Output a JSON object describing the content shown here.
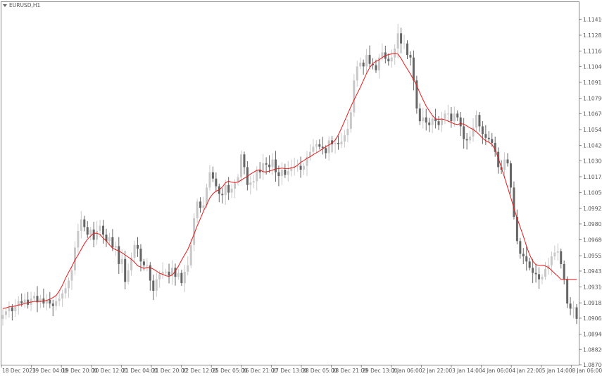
{
  "window": {
    "title": "EURUSD,H1",
    "menu_icon": "triangle-down-icon"
  },
  "chart_data": {
    "type": "candlestick",
    "symbol": "EURUSD",
    "timeframe": "H1",
    "ylim": [
      1.087,
      1.1155
    ],
    "y_ticks": [
      1.1141,
      1.11285,
      1.1116,
      1.1104,
      1.10915,
      1.1079,
      1.1067,
      1.10545,
      1.1042,
      1.103,
      1.10175,
      1.1005,
      1.09925,
      1.09805,
      1.0968,
      1.09555,
      1.09435,
      1.0931,
      1.09185,
      1.09065,
      1.0894,
      1.0882,
      1.087
    ],
    "y_tick_labels": [
      "1.11410",
      "1.11285",
      "1.11160",
      "1.11040",
      "1.10915",
      "1.10790",
      "1.10670",
      "1.10545",
      "1.10420",
      "1.10300",
      "1.10175",
      "1.10050",
      "1.09925",
      "1.09805",
      "1.09680",
      "1.09555",
      "1.09435",
      "1.09310",
      "1.09185",
      "1.09065",
      "1.08940",
      "1.08820",
      "1.08700"
    ],
    "x_tick_labels": [
      "18 Dec 2023",
      "19 Dec 04:00",
      "19 Dec 20:00",
      "20 Dec 12:00",
      "21 Dec 04:00",
      "21 Dec 20:00",
      "22 Dec 12:00",
      "25 Dec 05:00",
      "26 Dec 21:00",
      "27 Dec 13:00",
      "28 Dec 05:00",
      "28 Dec 21:00",
      "29 Dec 13:00",
      "2 Jan 06:00",
      "2 Jan 22:00",
      "3 Jan 14:00",
      "4 Jan 06:00",
      "4 Jan 22:00",
      "5 Jan 14:00",
      "8 Jan 06:00"
    ],
    "candles_visible": 180,
    "colors": {
      "bull": "#c8c8c8",
      "bear": "#666666",
      "moving_average": "#e8191a",
      "axis": "#888888",
      "text": "#555555"
    },
    "closes": [
      1.0909,
      1.0912,
      1.0915,
      1.0912,
      1.0916,
      1.092,
      1.0918,
      1.0921,
      1.0917,
      1.0922,
      1.0924,
      1.0919,
      1.0922,
      1.0918,
      1.0921,
      1.0918,
      1.0916,
      1.092,
      1.0922,
      1.0926,
      1.093,
      1.0936,
      1.0944,
      1.0962,
      1.0975,
      1.0984,
      1.0978,
      1.0972,
      1.0976,
      1.0968,
      1.0975,
      1.0979,
      1.0972,
      1.0967,
      1.097,
      1.0962,
      1.0963,
      1.0949,
      1.0953,
      1.0935,
      1.0944,
      1.0954,
      1.0964,
      1.0961,
      1.0951,
      1.0948,
      1.0948,
      1.0936,
      1.0928,
      1.0937,
      1.0941,
      1.0943,
      1.0943,
      1.094,
      1.0946,
      1.0939,
      1.0942,
      1.0934,
      1.0943,
      1.0948,
      1.0964,
      1.0985,
      1.0998,
      1.0993,
      1.0995,
      1.1009,
      1.1021,
      1.1016,
      1.101,
      1.1004,
      1.1003,
      1.1011,
      1.1005,
      1.1008,
      1.1013,
      1.1017,
      1.1035,
      1.1025,
      1.1011,
      1.1013,
      1.1014,
      1.1023,
      1.1021,
      1.1028,
      1.1027,
      1.1025,
      1.1031,
      1.1021,
      1.1018,
      1.1023,
      1.1019,
      1.1022,
      1.1025,
      1.1026,
      1.1026,
      1.1023,
      1.1026,
      1.1033,
      1.1037,
      1.1041,
      1.1043,
      1.1041,
      1.104,
      1.1036,
      1.1046,
      1.1043,
      1.1044,
      1.1043,
      1.1045,
      1.105,
      1.1055,
      1.1068,
      1.1093,
      1.1104,
      1.1107,
      1.1104,
      1.1113,
      1.1106,
      1.1105,
      1.1101,
      1.1111,
      1.1115,
      1.111,
      1.1108,
      1.1111,
      1.1118,
      1.113,
      1.1122,
      1.1122,
      1.1113,
      1.1111,
      1.1093,
      1.1071,
      1.1061,
      1.1064,
      1.106,
      1.1058,
      1.1063,
      1.1061,
      1.1058,
      1.1063,
      1.1067,
      1.1067,
      1.1061,
      1.1067,
      1.1064,
      1.1057,
      1.1047,
      1.1046,
      1.1049,
      1.1056,
      1.1066,
      1.1057,
      1.1051,
      1.1048,
      1.1047,
      1.1044,
      1.1037,
      1.1025,
      1.1023,
      1.1031,
      1.1028,
      1.1009,
      1.0986,
      1.0967,
      1.0957,
      1.0955,
      1.0951,
      1.0946,
      1.0942,
      1.0941,
      1.0937,
      1.0939,
      1.0945,
      1.0948,
      1.0955,
      1.0958,
      1.0959,
      1.0949,
      1.0937,
      1.0918,
      1.0914,
      1.0915,
      1.0906
    ],
    "ma_visible": true
  }
}
